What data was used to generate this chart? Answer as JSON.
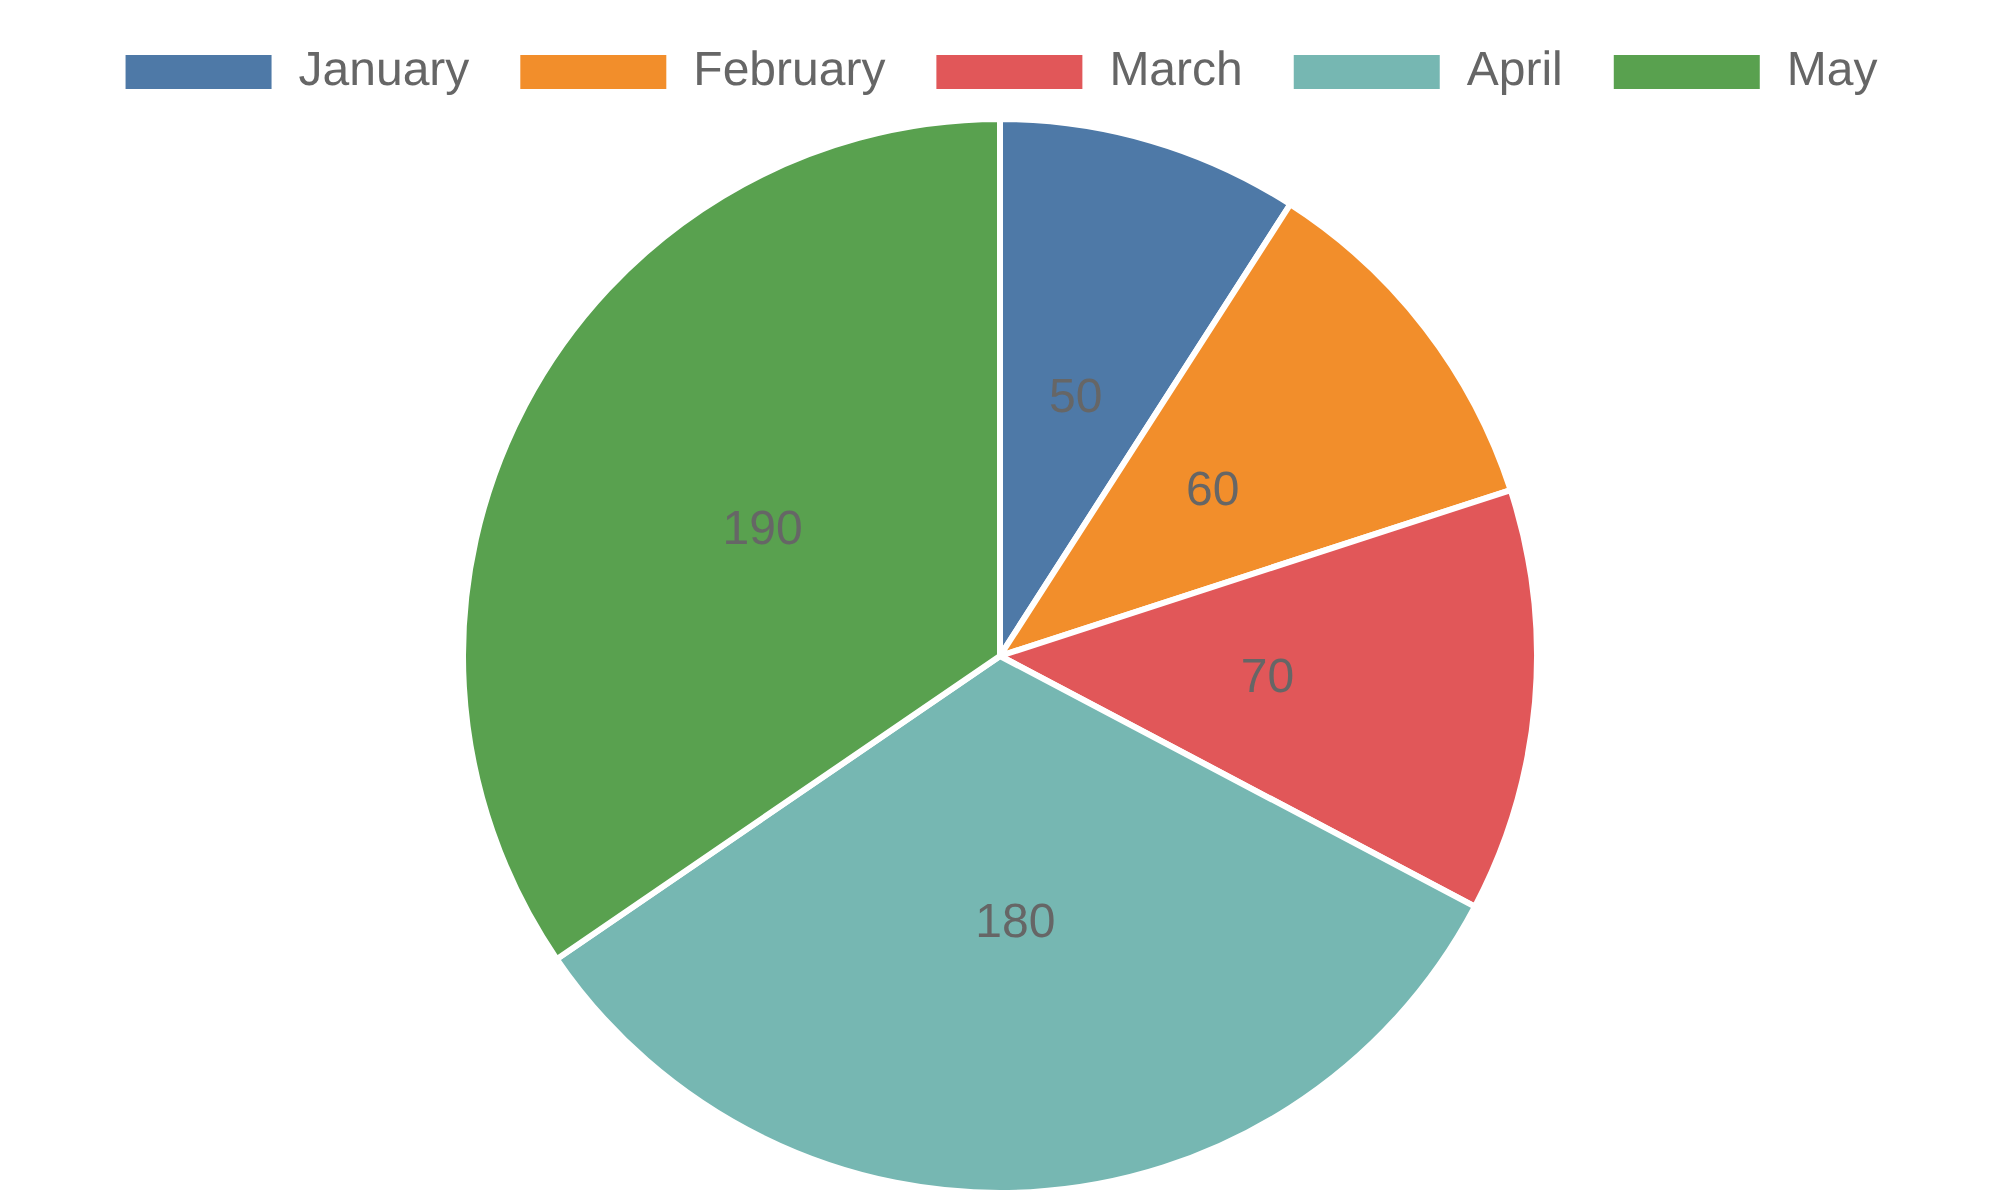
{
  "chart_data": {
    "type": "pie",
    "categories": [
      "January",
      "February",
      "March",
      "April",
      "May"
    ],
    "values": [
      50,
      60,
      70,
      180,
      190
    ],
    "colors": [
      "#4e79a7",
      "#f28e2b",
      "#e15759",
      "#76b7b2",
      "#59a14f"
    ],
    "legend": "top",
    "data_labels": true
  }
}
